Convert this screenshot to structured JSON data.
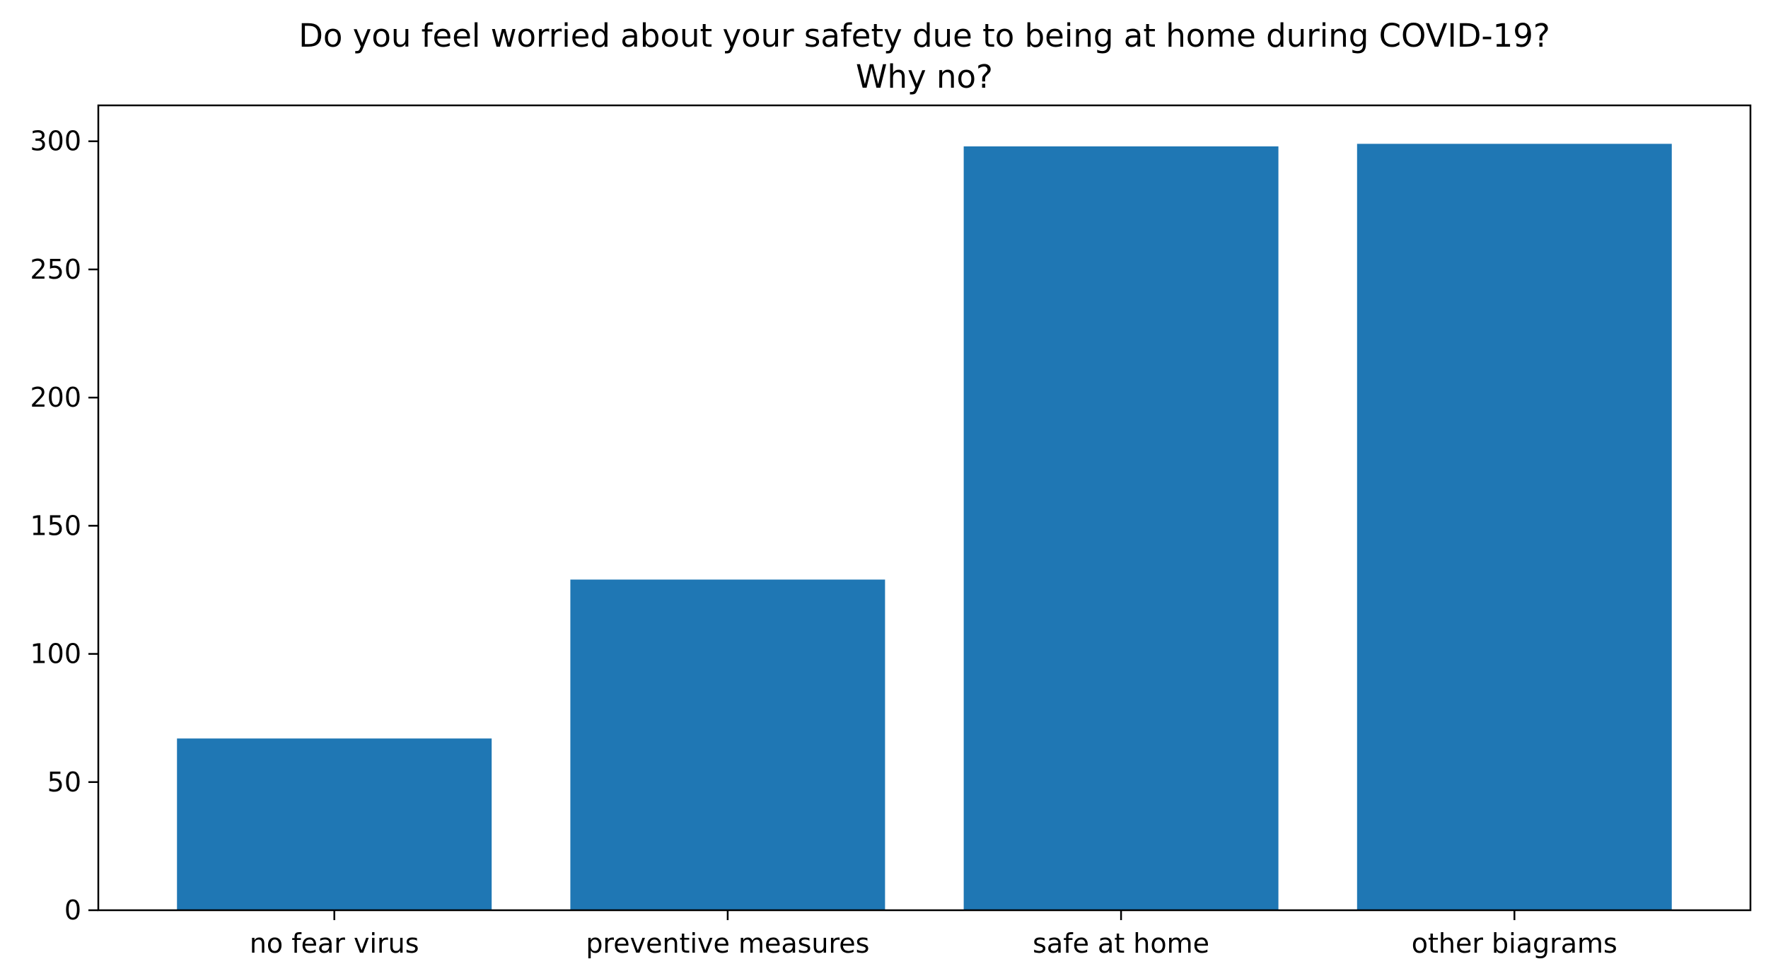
{
  "chart_data": {
    "type": "bar",
    "title": "Do you feel worried about your safety due to being at home during COVID-19?",
    "subtitle": "Why no?",
    "xlabel": "",
    "ylabel": "",
    "categories": [
      "no fear virus",
      "preventive measures",
      "safe at home",
      "other biagrams"
    ],
    "values": [
      67,
      129,
      298,
      299
    ],
    "ylim": [
      0,
      314
    ],
    "yticks": [
      0,
      50,
      100,
      150,
      200,
      250,
      300
    ],
    "grid": false,
    "legend": "none",
    "bar_color": "#1f77b4"
  }
}
